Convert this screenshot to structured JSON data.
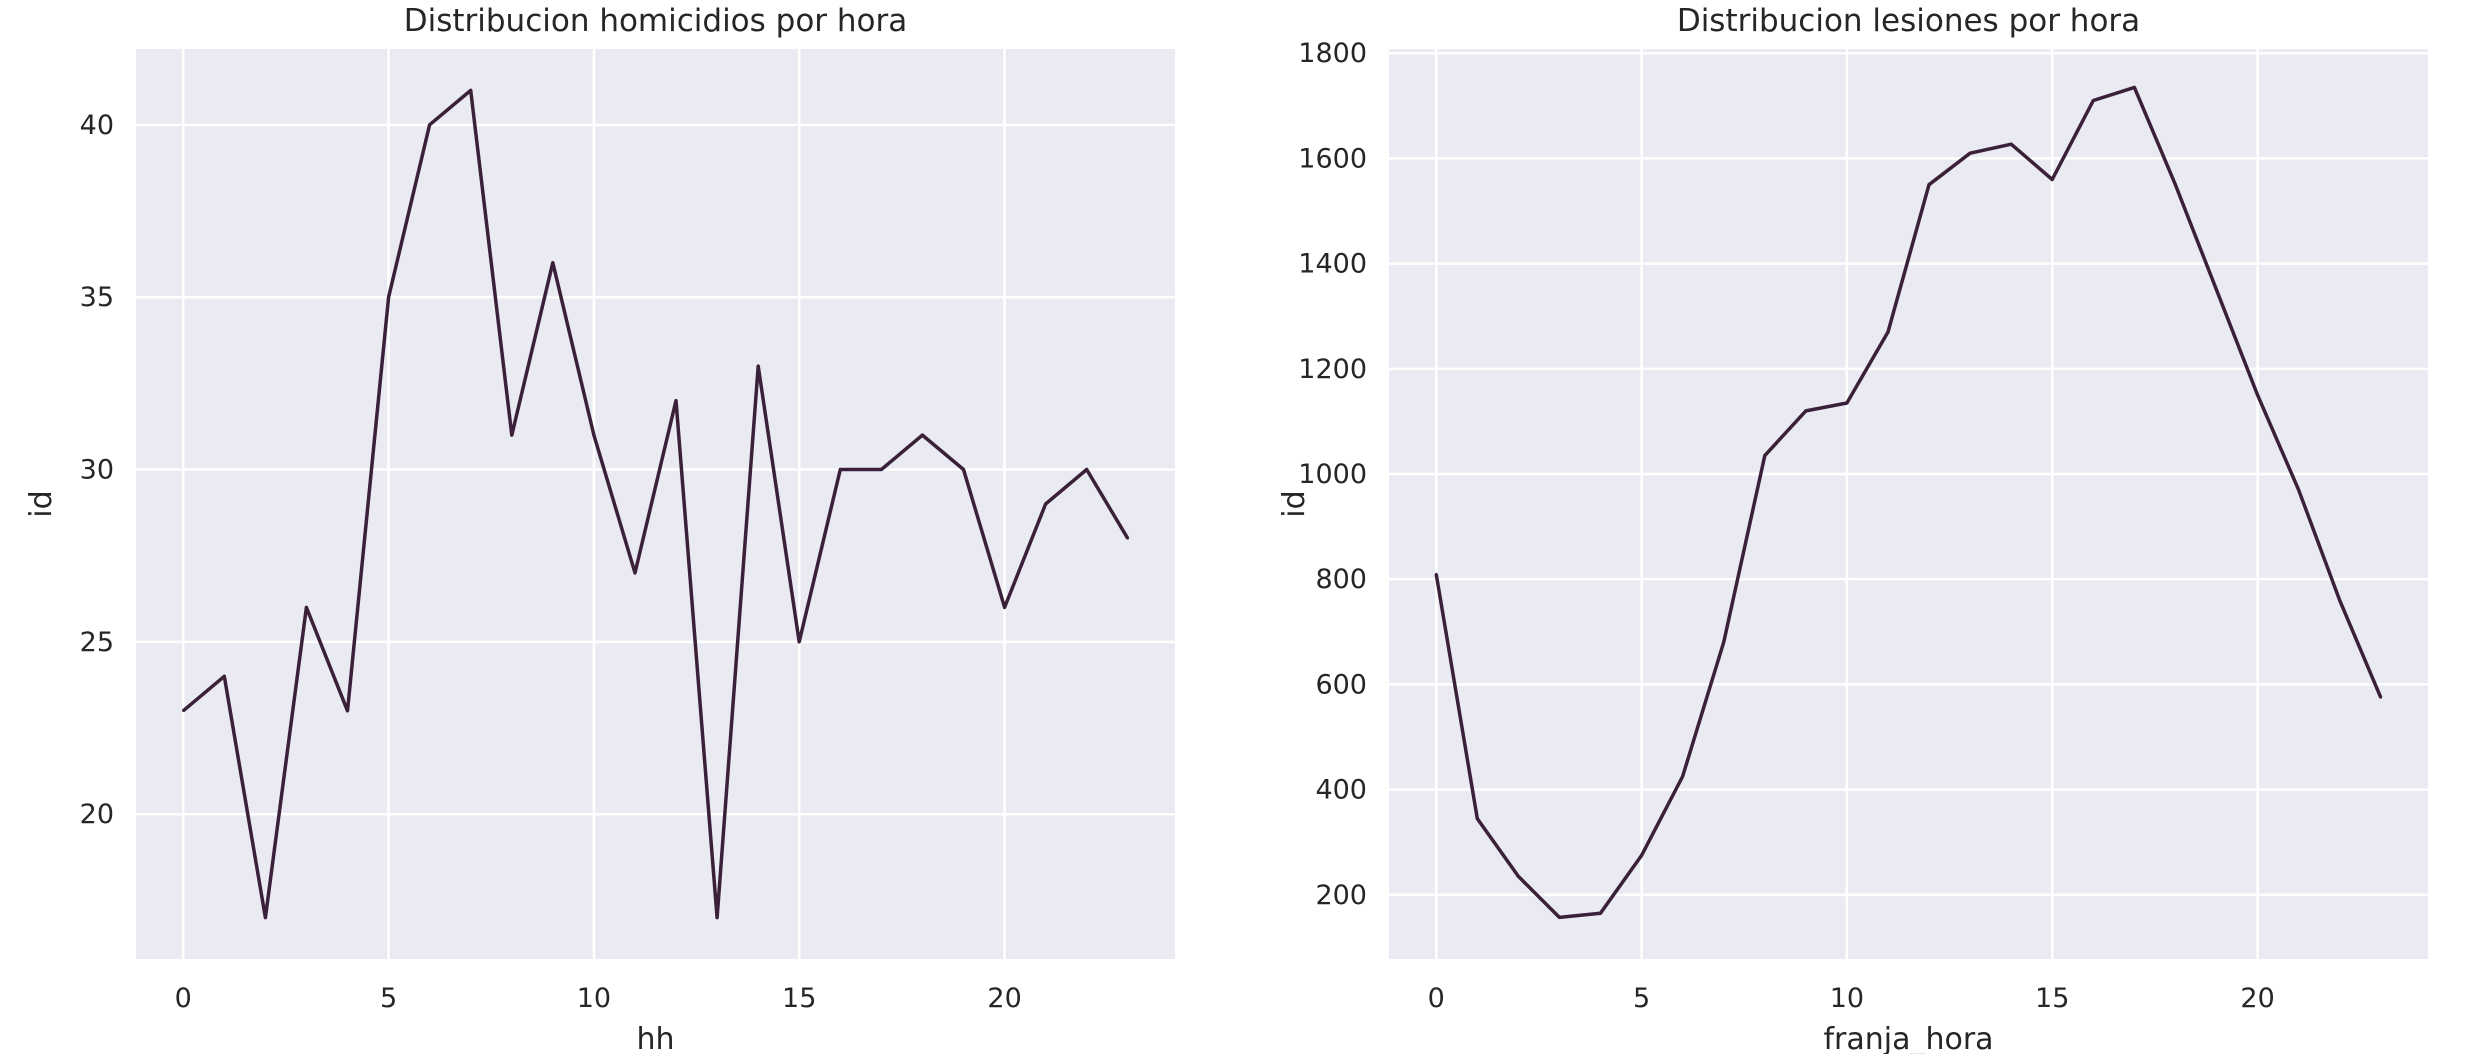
{
  "charts": [
    {
      "chart_data": {
        "type": "line",
        "title": "Distribucion homicidios por hora",
        "xlabel": "hh",
        "ylabel": "id",
        "x": [
          0,
          1,
          2,
          3,
          4,
          5,
          6,
          7,
          8,
          9,
          10,
          11,
          12,
          13,
          14,
          15,
          16,
          17,
          18,
          19,
          20,
          21,
          22,
          23
        ],
        "series": [
          {
            "values": [
              23,
              24,
              17,
              26,
              23,
              35,
              40,
              41,
              31,
              36,
              31,
              27,
              32,
              17,
              33,
              25,
              30,
              30,
              31,
              30,
              26,
              29,
              30,
              28
            ]
          }
        ],
        "xlim": [
          -1.15,
          24.15
        ],
        "ylim": [
          15.8,
          42.2
        ],
        "xticks": [
          0,
          5,
          10,
          15,
          20
        ],
        "yticks": [
          20,
          25,
          30,
          35,
          40
        ],
        "grid": true
      },
      "colors": {
        "line": "#3a2038",
        "background": "#eaeaf2",
        "grid": "#ffffff"
      }
    },
    {
      "chart_data": {
        "type": "line",
        "title": "Distribucion lesiones por hora",
        "xlabel": "franja_hora",
        "ylabel": "id",
        "x": [
          0,
          1,
          2,
          3,
          4,
          5,
          6,
          7,
          8,
          9,
          10,
          11,
          12,
          13,
          14,
          15,
          16,
          17,
          18,
          19,
          20,
          21,
          22,
          23
        ],
        "series": [
          {
            "values": [
              810,
              345,
              235,
              157,
              165,
              275,
              425,
              680,
              1035,
              1120,
              1135,
              1270,
              1550,
              1610,
              1627,
              1560,
              1710,
              1735,
              1550,
              1350,
              1150,
              970,
              760,
              575
            ]
          }
        ],
        "xlim": [
          -1.15,
          24.15
        ],
        "ylim": [
          78,
          1808
        ],
        "xticks": [
          0,
          5,
          10,
          15,
          20
        ],
        "yticks": [
          200,
          400,
          600,
          800,
          1000,
          1200,
          1400,
          1600,
          1800
        ],
        "grid": true
      },
      "colors": {
        "line": "#3a2038",
        "background": "#eaeaf2",
        "grid": "#ffffff"
      }
    }
  ]
}
